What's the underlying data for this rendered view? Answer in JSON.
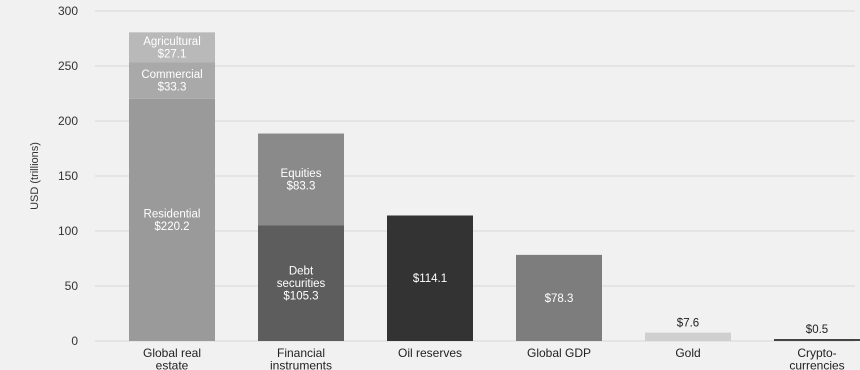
{
  "chart_data": {
    "type": "bar",
    "stacked": true,
    "ylabel": "USD (trillions)",
    "ylim": [
      0,
      300
    ],
    "yticks": [
      0,
      50,
      100,
      150,
      200,
      250,
      300
    ],
    "grid": true,
    "legend": "none",
    "categories": [
      [
        "Global real",
        "estate"
      ],
      [
        "Financial",
        "instruments"
      ],
      [
        "Oil reserves"
      ],
      [
        "Global GDP"
      ],
      [
        "Gold"
      ],
      [
        "Crypto-",
        "currencies"
      ]
    ],
    "bars": [
      {
        "segments": [
          {
            "label": "Residential",
            "value_text": "$220.2",
            "value": 220.2,
            "color": "#9a9a9a",
            "text_color": "#ffffff"
          },
          {
            "label": "Commercial",
            "value_text": "$33.3",
            "value": 33.3,
            "color": "#a9a9a9",
            "text_color": "#ffffff"
          },
          {
            "label": "Agricultural",
            "value_text": "$27.1",
            "value": 27.1,
            "color": "#b9b9b9",
            "text_color": "#ffffff"
          }
        ]
      },
      {
        "segments": [
          {
            "label": "Debt securities",
            "label_lines": [
              "Debt",
              "securities"
            ],
            "value_text": "$105.3",
            "value": 105.3,
            "color": "#5d5d5d",
            "text_color": "#ffffff"
          },
          {
            "label": "Equities",
            "value_text": "$83.3",
            "value": 83.3,
            "color": "#8a8a8a",
            "text_color": "#ffffff"
          }
        ]
      },
      {
        "segments": [
          {
            "value_text": "$114.1",
            "value": 114.1,
            "color": "#333333",
            "text_color": "#ffffff"
          }
        ]
      },
      {
        "segments": [
          {
            "value_text": "$78.3",
            "value": 78.3,
            "color": "#7d7d7d",
            "text_color": "#ffffff"
          }
        ]
      },
      {
        "segments": [
          {
            "value_text": "$7.6",
            "value": 7.6,
            "color": "#cfcfcf",
            "text_color": "#222222",
            "label_above": true
          }
        ]
      },
      {
        "segments": [
          {
            "value_text": "$0.5",
            "value": 0.5,
            "color": "#444444",
            "text_color": "#222222",
            "label_above": true
          }
        ]
      }
    ]
  }
}
